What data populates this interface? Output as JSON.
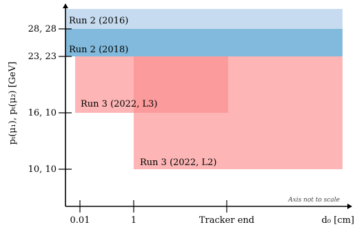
{
  "chart_data": {
    "type": "region",
    "note": "Axis not to scale",
    "xlabel": "d₀ [cm]",
    "ylabel": "pₜ(μ₁), pₜ(μ₂) [GeV]",
    "x_ticks": [
      "0.01",
      "1",
      "Tracker end"
    ],
    "y_ticks": [
      "10, 10",
      "16, 10",
      "23, 23",
      "28, 28"
    ],
    "regions": [
      {
        "label": "Run 2 (2016)",
        "x_from": "0",
        "x_to": "beyond Tracker end",
        "y_from": "28, 28",
        "color": "#c6dbef"
      },
      {
        "label": "Run 2 (2018)",
        "x_from": "0",
        "x_to": "beyond Tracker end",
        "y_from": "23, 23",
        "y_to": "28, 28",
        "color": "#6baed6"
      },
      {
        "label": "Run 3 (2022, L3)",
        "x_from": "0.01",
        "x_to": "Tracker end",
        "y_from": "16, 10",
        "y_to": "23, 23",
        "color": "#fc8d8d"
      },
      {
        "label": "Run 3 (2022, L2)",
        "x_from": "1",
        "x_to": "beyond Tracker end",
        "y_from": "10, 10",
        "y_to": "23, 23",
        "color": "#fc8d8d"
      }
    ]
  }
}
